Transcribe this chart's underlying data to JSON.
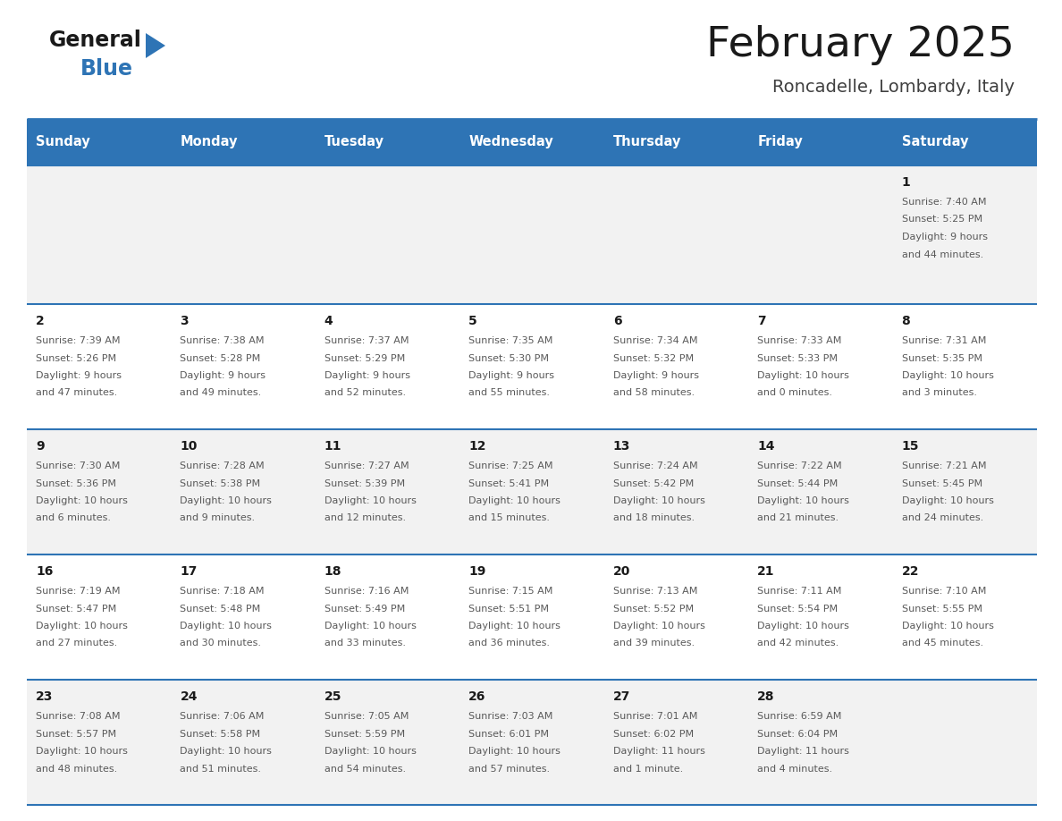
{
  "title": "February 2025",
  "subtitle": "Roncadelle, Lombardy, Italy",
  "header_color": "#2E74B5",
  "header_text_color": "#FFFFFF",
  "cell_bg_row0": "#F2F2F2",
  "cell_bg_row1": "#FFFFFF",
  "cell_bg_row2": "#F2F2F2",
  "cell_bg_row3": "#FFFFFF",
  "cell_bg_row4": "#F2F2F2",
  "border_color": "#2E74B5",
  "text_color": "#595959",
  "day_number_color": "#1a1a1a",
  "days_of_week": [
    "Sunday",
    "Monday",
    "Tuesday",
    "Wednesday",
    "Thursday",
    "Friday",
    "Saturday"
  ],
  "calendar_data": [
    [
      null,
      null,
      null,
      null,
      null,
      null,
      {
        "day": 1,
        "sunrise": "7:40 AM",
        "sunset": "5:25 PM",
        "daylight": "9 hours and 44 minutes."
      }
    ],
    [
      {
        "day": 2,
        "sunrise": "7:39 AM",
        "sunset": "5:26 PM",
        "daylight": "9 hours and 47 minutes."
      },
      {
        "day": 3,
        "sunrise": "7:38 AM",
        "sunset": "5:28 PM",
        "daylight": "9 hours and 49 minutes."
      },
      {
        "day": 4,
        "sunrise": "7:37 AM",
        "sunset": "5:29 PM",
        "daylight": "9 hours and 52 minutes."
      },
      {
        "day": 5,
        "sunrise": "7:35 AM",
        "sunset": "5:30 PM",
        "daylight": "9 hours and 55 minutes."
      },
      {
        "day": 6,
        "sunrise": "7:34 AM",
        "sunset": "5:32 PM",
        "daylight": "9 hours and 58 minutes."
      },
      {
        "day": 7,
        "sunrise": "7:33 AM",
        "sunset": "5:33 PM",
        "daylight": "10 hours and 0 minutes."
      },
      {
        "day": 8,
        "sunrise": "7:31 AM",
        "sunset": "5:35 PM",
        "daylight": "10 hours and 3 minutes."
      }
    ],
    [
      {
        "day": 9,
        "sunrise": "7:30 AM",
        "sunset": "5:36 PM",
        "daylight": "10 hours and 6 minutes."
      },
      {
        "day": 10,
        "sunrise": "7:28 AM",
        "sunset": "5:38 PM",
        "daylight": "10 hours and 9 minutes."
      },
      {
        "day": 11,
        "sunrise": "7:27 AM",
        "sunset": "5:39 PM",
        "daylight": "10 hours and 12 minutes."
      },
      {
        "day": 12,
        "sunrise": "7:25 AM",
        "sunset": "5:41 PM",
        "daylight": "10 hours and 15 minutes."
      },
      {
        "day": 13,
        "sunrise": "7:24 AM",
        "sunset": "5:42 PM",
        "daylight": "10 hours and 18 minutes."
      },
      {
        "day": 14,
        "sunrise": "7:22 AM",
        "sunset": "5:44 PM",
        "daylight": "10 hours and 21 minutes."
      },
      {
        "day": 15,
        "sunrise": "7:21 AM",
        "sunset": "5:45 PM",
        "daylight": "10 hours and 24 minutes."
      }
    ],
    [
      {
        "day": 16,
        "sunrise": "7:19 AM",
        "sunset": "5:47 PM",
        "daylight": "10 hours and 27 minutes."
      },
      {
        "day": 17,
        "sunrise": "7:18 AM",
        "sunset": "5:48 PM",
        "daylight": "10 hours and 30 minutes."
      },
      {
        "day": 18,
        "sunrise": "7:16 AM",
        "sunset": "5:49 PM",
        "daylight": "10 hours and 33 minutes."
      },
      {
        "day": 19,
        "sunrise": "7:15 AM",
        "sunset": "5:51 PM",
        "daylight": "10 hours and 36 minutes."
      },
      {
        "day": 20,
        "sunrise": "7:13 AM",
        "sunset": "5:52 PM",
        "daylight": "10 hours and 39 minutes."
      },
      {
        "day": 21,
        "sunrise": "7:11 AM",
        "sunset": "5:54 PM",
        "daylight": "10 hours and 42 minutes."
      },
      {
        "day": 22,
        "sunrise": "7:10 AM",
        "sunset": "5:55 PM",
        "daylight": "10 hours and 45 minutes."
      }
    ],
    [
      {
        "day": 23,
        "sunrise": "7:08 AM",
        "sunset": "5:57 PM",
        "daylight": "10 hours and 48 minutes."
      },
      {
        "day": 24,
        "sunrise": "7:06 AM",
        "sunset": "5:58 PM",
        "daylight": "10 hours and 51 minutes."
      },
      {
        "day": 25,
        "sunrise": "7:05 AM",
        "sunset": "5:59 PM",
        "daylight": "10 hours and 54 minutes."
      },
      {
        "day": 26,
        "sunrise": "7:03 AM",
        "sunset": "6:01 PM",
        "daylight": "10 hours and 57 minutes."
      },
      {
        "day": 27,
        "sunrise": "7:01 AM",
        "sunset": "6:02 PM",
        "daylight": "11 hours and 1 minute."
      },
      {
        "day": 28,
        "sunrise": "6:59 AM",
        "sunset": "6:04 PM",
        "daylight": "11 hours and 4 minutes."
      },
      null
    ]
  ],
  "logo_general_color": "#1a1a1a",
  "logo_blue_color": "#2E74B5",
  "logo_triangle_color": "#2E74B5"
}
